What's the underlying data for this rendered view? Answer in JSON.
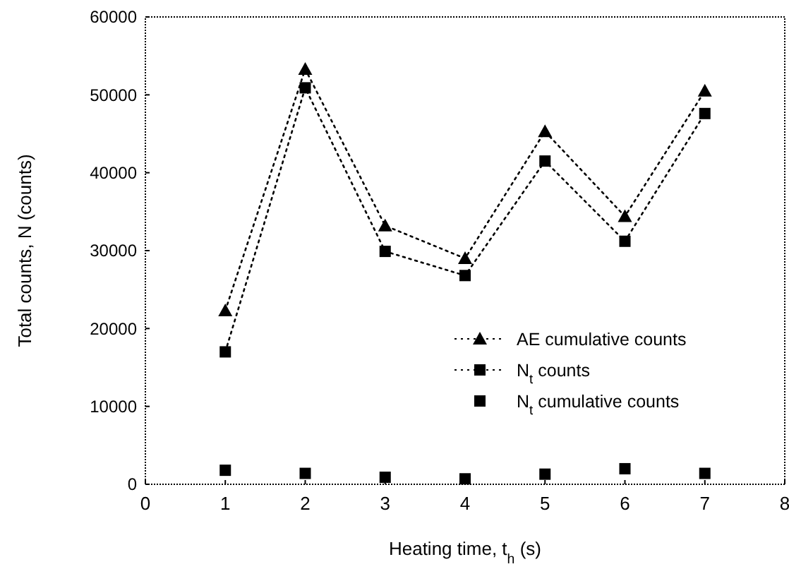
{
  "chart_data": {
    "type": "line",
    "xlabel": "Heating time, t$_{h}$ (s)",
    "ylabel": "Total counts, N (counts)",
    "x": [
      1,
      2,
      3,
      4,
      5,
      6,
      7
    ],
    "series": [
      {
        "name": "AE cumulative counts",
        "color": "#000000",
        "values": [
          22300,
          53300,
          33200,
          29000,
          45300,
          34400,
          50500
        ],
        "marker": "triangle",
        "line_style": "dotted"
      },
      {
        "name": "N$_{t}$ counts",
        "color": "#000000",
        "values": [
          17000,
          50900,
          29900,
          26800,
          41500,
          31200,
          47600
        ],
        "marker": "square",
        "line_style": "dotted"
      },
      {
        "name": "N$_{t}$ cumulative counts",
        "type": "scatter",
        "color": "#000000",
        "values": [
          1800,
          1400,
          900,
          700,
          1300,
          2000,
          1400
        ],
        "marker": "square"
      }
    ],
    "xlim": [
      0,
      8
    ],
    "xticks": [
      0,
      1,
      2,
      3,
      4,
      5,
      6,
      7,
      8
    ],
    "ylim": [
      0,
      60000
    ],
    "yticks": [
      0,
      10000,
      20000,
      30000,
      40000,
      50000,
      60000
    ],
    "grid": false,
    "legend": "right"
  }
}
